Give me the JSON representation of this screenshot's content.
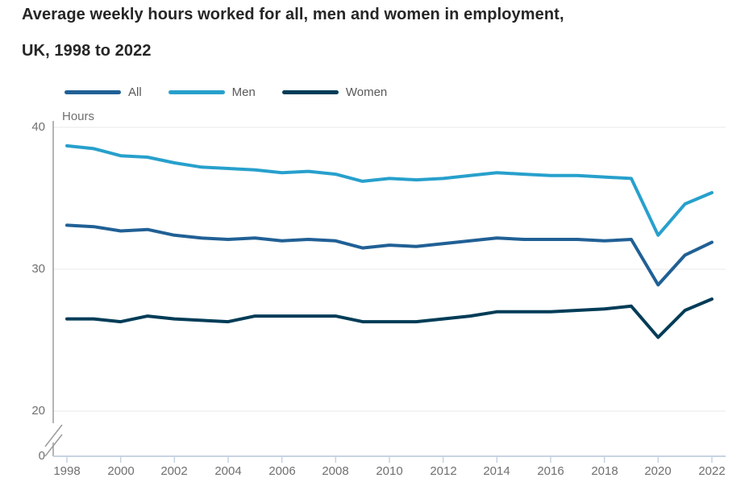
{
  "title": {
    "line1": "Average weekly hours worked for all, men and women in employment,",
    "line2": "UK, 1998 to 2022"
  },
  "chart_data": {
    "type": "line",
    "title": "Average weekly hours worked for all, men and women in employment, UK, 1998 to 2022",
    "ylabel": "Hours",
    "x": [
      1998,
      1999,
      2000,
      2001,
      2002,
      2003,
      2004,
      2005,
      2006,
      2007,
      2008,
      2009,
      2010,
      2011,
      2012,
      2013,
      2014,
      2015,
      2016,
      2017,
      2018,
      2019,
      2020,
      2021,
      2022
    ],
    "series": [
      {
        "name": "All",
        "color": "#206095",
        "values": [
          33.1,
          33.0,
          32.7,
          32.8,
          32.4,
          32.2,
          32.1,
          32.2,
          32.0,
          32.1,
          32.0,
          31.5,
          31.7,
          31.6,
          31.8,
          32.0,
          32.2,
          32.1,
          32.1,
          32.1,
          32.0,
          32.1,
          28.9,
          31.0,
          31.9
        ]
      },
      {
        "name": "Men",
        "color": "#27A0CC",
        "values": [
          38.7,
          38.5,
          38.0,
          37.9,
          37.5,
          37.2,
          37.1,
          37.0,
          36.8,
          36.9,
          36.7,
          36.2,
          36.4,
          36.3,
          36.4,
          36.6,
          36.8,
          36.7,
          36.6,
          36.6,
          36.5,
          36.4,
          32.4,
          34.6,
          35.4
        ]
      },
      {
        "name": "Women",
        "color": "#003C57",
        "values": [
          26.5,
          26.5,
          26.3,
          26.7,
          26.5,
          26.4,
          26.3,
          26.7,
          26.7,
          26.7,
          26.7,
          26.3,
          26.3,
          26.3,
          26.5,
          26.7,
          27.0,
          27.0,
          27.0,
          27.1,
          27.2,
          27.4,
          25.2,
          27.1,
          27.9
        ]
      }
    ],
    "y_ticks": [
      40,
      30,
      20,
      0
    ],
    "x_ticks": [
      1998,
      2000,
      2002,
      2004,
      2006,
      2008,
      2010,
      2012,
      2014,
      2016,
      2018,
      2020,
      2022
    ],
    "axis_break": true,
    "ylim_display": [
      20,
      40
    ],
    "legend_position": "top",
    "grid": "horizontal"
  },
  "colors": {
    "grid": "#e8e8e8",
    "y_axis": "#9c9c9c",
    "x_axis": "#c6d3e2",
    "tick_text": "#707070"
  }
}
